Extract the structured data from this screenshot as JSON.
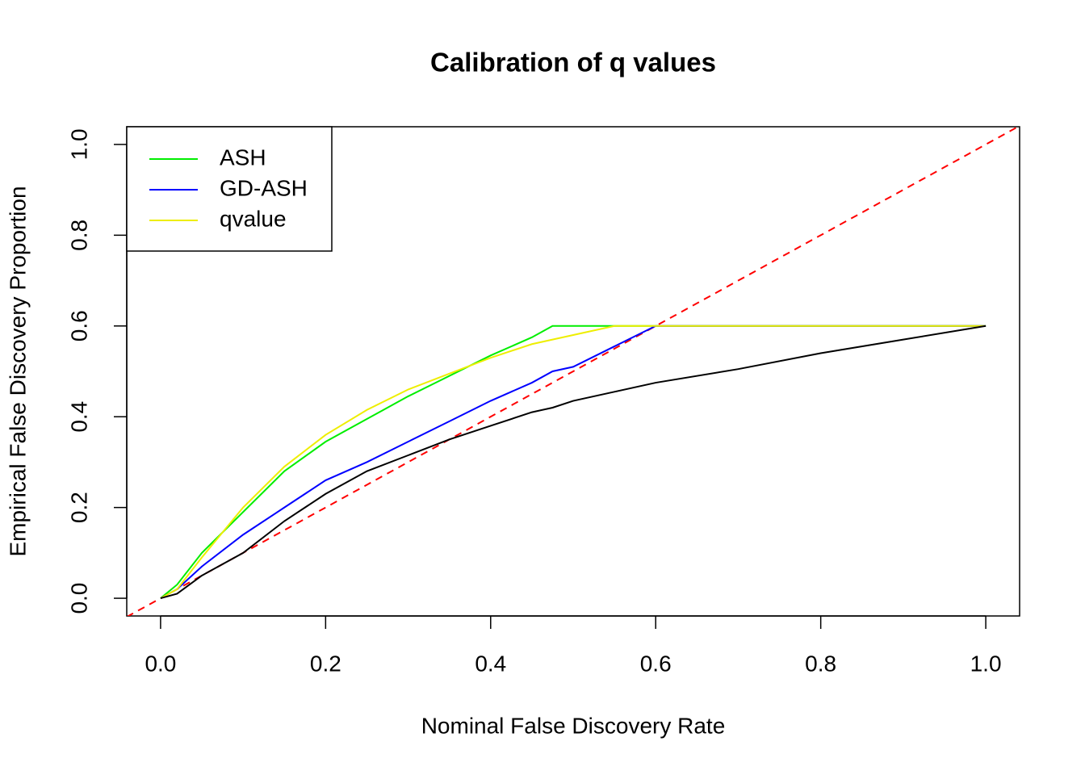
{
  "chart_data": {
    "type": "line",
    "title": "Calibration of q values",
    "x_label": "Nominal False Discovery Rate",
    "y_label": "Empirical False Discovery Proportion",
    "x": [
      0,
      0.02,
      0.05,
      0.1,
      0.15,
      0.2,
      0.25,
      0.3,
      0.35,
      0.4,
      0.45,
      0.475,
      0.5,
      0.55,
      0.6,
      0.7,
      0.8,
      0.9,
      1.0
    ],
    "series": [
      {
        "name": "ASH",
        "color": "#00ee00",
        "values": [
          0,
          0.03,
          0.1,
          0.19,
          0.28,
          0.345,
          0.395,
          0.445,
          0.49,
          0.535,
          0.575,
          0.6,
          0.6,
          0.6,
          0.6,
          0.6,
          0.6,
          0.6,
          0.6
        ]
      },
      {
        "name": "GD-ASH",
        "color": "#0000ff",
        "values": [
          0,
          0.02,
          0.07,
          0.14,
          0.2,
          0.26,
          0.3,
          0.345,
          0.39,
          0.435,
          0.475,
          0.5,
          0.51,
          0.555,
          0.6,
          0.6,
          0.6,
          0.6,
          0.6
        ]
      },
      {
        "name": "qvalue",
        "color": "#eeee00",
        "values": [
          0,
          0.02,
          0.09,
          0.2,
          0.29,
          0.36,
          0.415,
          0.46,
          0.495,
          0.53,
          0.56,
          0.57,
          0.58,
          0.6,
          0.6,
          0.6,
          0.6,
          0.6,
          0.6
        ]
      },
      {
        "color": "#000000",
        "values": [
          0,
          0.01,
          0.05,
          0.1,
          0.17,
          0.23,
          0.28,
          0.315,
          0.35,
          0.38,
          0.41,
          0.42,
          0.435,
          0.455,
          0.475,
          0.505,
          0.54,
          0.57,
          0.6
        ]
      }
    ],
    "diagonal": {
      "color": "#ff0000",
      "dashed": true
    },
    "xlim": [
      -0.041,
      1.041
    ],
    "ylim": [
      -0.039,
      1.039
    ],
    "xticks": [
      {
        "value": 0,
        "label": "0.0"
      },
      0.2,
      0.4,
      0.6,
      0.8,
      {
        "value": 1,
        "label": "1.0"
      }
    ],
    "yticks": [
      {
        "value": 0,
        "label": "0.0"
      },
      0.2,
      0.4,
      0.6,
      0.8,
      {
        "value": 1,
        "label": "1.0"
      }
    ],
    "legend": "top-left"
  }
}
